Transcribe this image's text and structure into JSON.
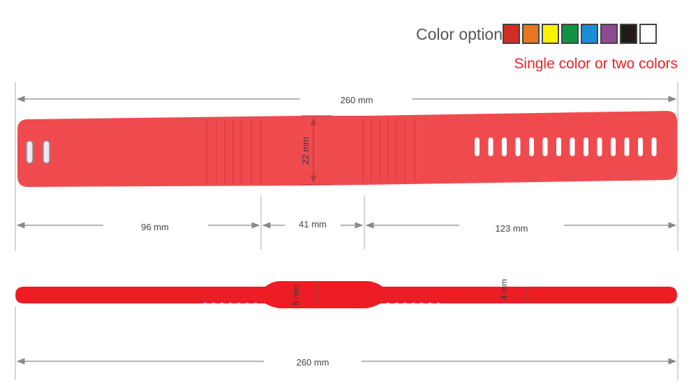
{
  "header": {
    "label": "Color option",
    "colors": [
      "#d42b25",
      "#e8761f",
      "#fff200",
      "#109444",
      "#1a8fd6",
      "#8e4a91",
      "#211a17",
      "#ffffff"
    ],
    "note": "Single color or two colors",
    "note_color": "#e8232a"
  },
  "band_color": "#ef4b4f",
  "side_color": "#ee1c24",
  "dims": {
    "total_length_top": "260 mm",
    "width": "22 mm",
    "seg_left": "96 mm",
    "seg_mid": "41 mm",
    "seg_right": "123 mm",
    "thick_mid": "6 mm",
    "thick_end": "4 mm",
    "total_length_bottom": "260 mm"
  }
}
